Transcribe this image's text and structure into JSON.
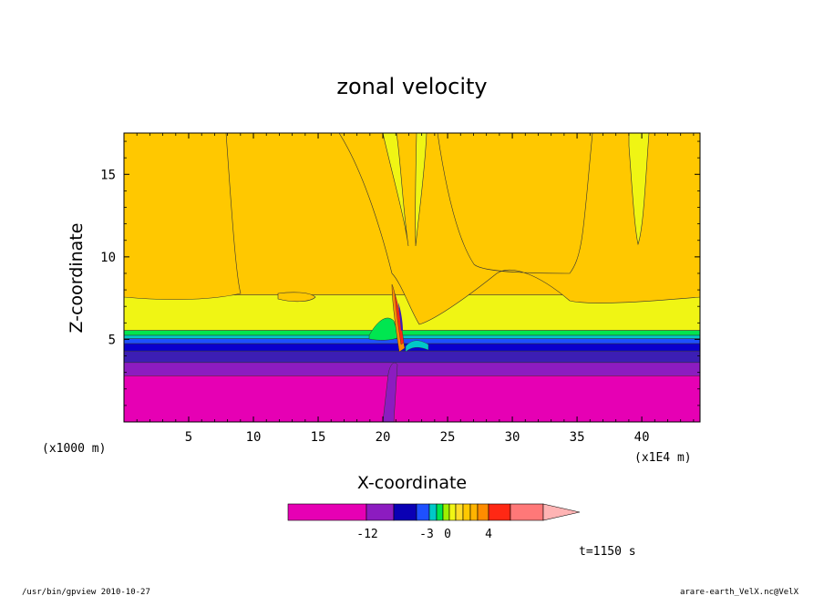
{
  "chart_data": {
    "type": "heatmap",
    "title": "zonal velocity",
    "xlabel": "X-coordinate",
    "ylabel": "Z-coordinate",
    "x_unit_note": "(x1E4 m)",
    "y_unit_note": "(x1000 m)",
    "xlim": [
      0,
      44.5
    ],
    "ylim": [
      0,
      17.5
    ],
    "x_ticks": [
      5,
      10,
      15,
      20,
      25,
      30,
      35,
      40
    ],
    "y_ticks": [
      5,
      10,
      15
    ],
    "layers": [
      {
        "name": "pink",
        "z_bottom": 0,
        "z_top": 2.8,
        "color": "#e600b4"
      },
      {
        "name": "purple",
        "z_bottom": 2.8,
        "z_top": 3.6,
        "color": "#8c1cc0"
      },
      {
        "name": "darkblue",
        "z_bottom": 3.6,
        "z_top": 4.3,
        "color": "#3c1eb4"
      },
      {
        "name": "blue",
        "z_bottom": 4.3,
        "z_top": 4.75,
        "color": "#0a00cc"
      },
      {
        "name": "medblue",
        "z_bottom": 4.75,
        "z_top": 5.05,
        "color": "#1e50ff"
      },
      {
        "name": "cyan",
        "z_bottom": 5.05,
        "z_top": 5.25,
        "color": "#00c8c8"
      },
      {
        "name": "green",
        "z_bottom": 5.25,
        "z_top": 5.55,
        "color": "#00e650"
      },
      {
        "name": "yellow",
        "z_bottom": 5.55,
        "z_top": 7.7,
        "color": "#f0f514"
      },
      {
        "name": "orange",
        "z_bottom": 7.7,
        "z_top": 17.5,
        "color": "#ffc800"
      }
    ],
    "colorbar": {
      "colors": [
        "#e600b4",
        "#8c1cc0",
        "#0a00b4",
        "#1e50ff",
        "#00c8c8",
        "#00e650",
        "#a0f000",
        "#f0f514",
        "#ffdc28",
        "#ffc800",
        "#ffb400",
        "#ff8c00",
        "#ff2814",
        "#ff7878",
        "#ffb4b4"
      ],
      "tick_labels": [
        "-12",
        "-3",
        "0",
        "4"
      ]
    },
    "time_label": "t=1150 s"
  },
  "footer": {
    "left": "/usr/bin/gpview   2010-10-27",
    "right": "arare-earth_VelX.nc@VelX"
  }
}
